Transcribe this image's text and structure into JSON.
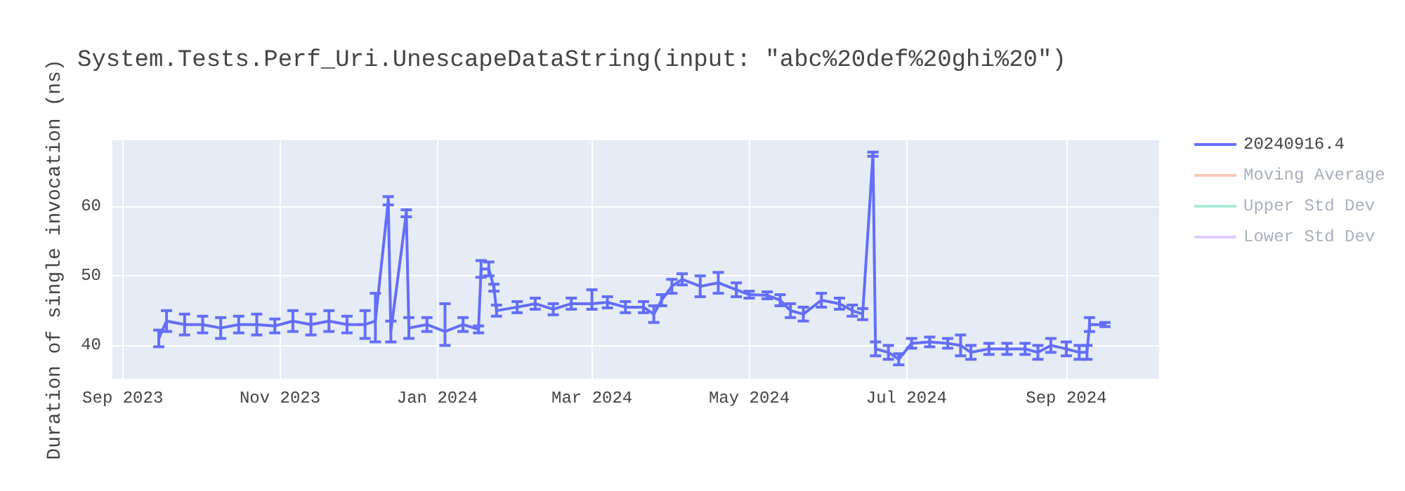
{
  "chart_data": {
    "type": "line",
    "title": "System.Tests.Perf_Uri.UnescapeDataString(input: \"abc%20def%20ghi%20\")",
    "ylabel": "Duration of single invocation (ns)",
    "x": [
      "2023-09-15",
      "2023-09-18",
      "2023-09-25",
      "2023-10-02",
      "2023-10-09",
      "2023-10-16",
      "2023-10-23",
      "2023-10-30",
      "2023-11-06",
      "2023-11-13",
      "2023-11-20",
      "2023-11-27",
      "2023-12-04",
      "2023-12-08",
      "2023-12-13",
      "2023-12-14",
      "2023-12-20",
      "2023-12-21",
      "2023-12-28",
      "2024-01-04",
      "2024-01-11",
      "2024-01-17",
      "2024-01-18",
      "2024-01-21",
      "2024-01-23",
      "2024-01-24",
      "2024-02-01",
      "2024-02-08",
      "2024-02-15",
      "2024-02-22",
      "2024-03-01",
      "2024-03-07",
      "2024-03-14",
      "2024-03-21",
      "2024-03-25",
      "2024-03-28",
      "2024-04-01",
      "2024-04-05",
      "2024-04-12",
      "2024-04-19",
      "2024-04-26",
      "2024-05-01",
      "2024-05-08",
      "2024-05-13",
      "2024-05-17",
      "2024-05-22",
      "2024-05-29",
      "2024-06-05",
      "2024-06-10",
      "2024-06-14",
      "2024-06-18",
      "2024-06-19",
      "2024-06-24",
      "2024-06-28",
      "2024-07-03",
      "2024-07-10",
      "2024-07-17",
      "2024-07-22",
      "2024-07-26",
      "2024-08-02",
      "2024-08-09",
      "2024-08-16",
      "2024-08-21",
      "2024-08-26",
      "2024-09-01",
      "2024-09-06",
      "2024-09-09",
      "2024-09-10",
      "2024-09-16"
    ],
    "series": [
      {
        "name": "20240916.4",
        "color": "#636efa",
        "values": [
          41,
          43.5,
          43,
          43,
          42.5,
          43,
          43,
          42.8,
          43.5,
          43,
          43.5,
          43,
          43,
          43.5,
          60.8,
          42,
          59,
          42.5,
          43,
          42,
          43,
          42.3,
          51,
          51,
          48.3,
          45,
          45.5,
          46,
          45.2,
          46,
          46,
          46.2,
          45.5,
          45.5,
          44.5,
          46.5,
          48.5,
          49.5,
          48.5,
          49,
          48,
          47.3,
          47.2,
          46.5,
          45,
          44.5,
          46.5,
          46,
          45,
          44.5,
          67.5,
          39.5,
          39,
          38,
          40.3,
          40.5,
          40.3,
          40,
          39,
          39.5,
          39.5,
          39.5,
          39,
          40,
          39.5,
          39,
          39,
          43,
          43
        ],
        "errors": [
          1.2,
          1.5,
          1.5,
          1.2,
          1.5,
          1.2,
          1.5,
          1,
          1.5,
          1.5,
          1.5,
          1.2,
          2,
          [
            40.5,
            47.5
          ],
          0.6,
          1.5,
          0.5,
          1.5,
          1,
          [
            40,
            46
          ],
          1,
          0.5,
          1.2,
          1,
          0.5,
          0.8,
          0.8,
          0.8,
          0.8,
          0.8,
          [
            45.2,
            48
          ],
          0.8,
          0.8,
          0.8,
          1.2,
          0.8,
          1,
          0.8,
          1.5,
          1.5,
          1,
          0.5,
          0.5,
          0.8,
          1,
          1,
          1,
          0.8,
          0.8,
          0.8,
          0.3,
          1,
          1,
          0.8,
          0.7,
          0.7,
          0.7,
          1.5,
          1,
          0.8,
          0.8,
          0.8,
          1,
          1,
          1,
          1,
          1,
          1,
          0.3
        ]
      },
      {
        "name": "Moving Average",
        "color": "#f4a58a",
        "values": [
          null,
          null,
          null,
          null,
          null,
          null,
          null,
          null,
          null,
          null,
          null,
          null,
          null,
          null,
          null,
          null,
          null,
          null,
          null,
          null,
          null,
          null,
          null,
          null,
          null,
          null,
          null,
          null,
          null,
          null,
          null,
          null,
          null,
          null,
          null,
          null,
          null,
          null,
          null,
          null,
          null,
          null,
          null,
          null,
          null,
          null,
          null,
          null,
          null,
          null,
          null,
          null,
          null,
          null,
          null,
          null,
          null,
          null,
          null,
          null,
          null,
          null,
          null,
          null,
          null,
          null,
          null,
          null,
          null
        ]
      },
      {
        "name": "Upper Std Dev",
        "color": "#6ee0b4",
        "values": [
          null,
          null,
          null,
          null,
          null,
          null,
          null,
          null,
          null,
          null,
          null,
          null,
          null,
          null,
          null,
          null,
          null,
          null,
          null,
          null,
          null,
          null,
          null,
          null,
          null,
          null,
          null,
          null,
          null,
          null,
          null,
          null,
          null,
          null,
          null,
          null,
          null,
          null,
          null,
          null,
          null,
          null,
          null,
          null,
          null,
          null,
          null,
          null,
          null,
          null,
          null,
          null,
          null,
          null,
          null,
          null,
          null,
          null,
          null,
          null,
          null,
          null,
          null,
          null,
          null,
          null,
          null,
          null,
          null
        ]
      },
      {
        "name": "Lower Std Dev",
        "color": "#c9a8f5",
        "values": [
          null,
          null,
          null,
          null,
          null,
          null,
          null,
          null,
          null,
          null,
          null,
          null,
          null,
          null,
          null,
          null,
          null,
          null,
          null,
          null,
          null,
          null,
          null,
          null,
          null,
          null,
          null,
          null,
          null,
          null,
          null,
          null,
          null,
          null,
          null,
          null,
          null,
          null,
          null,
          null,
          null,
          null,
          null,
          null,
          null,
          null,
          null,
          null,
          null,
          null,
          null,
          null,
          null,
          null,
          null,
          null,
          null,
          null,
          null,
          null,
          null,
          null,
          null,
          null,
          null,
          null,
          null,
          null,
          null
        ]
      }
    ],
    "xlim": [
      "2023-08-28",
      "2024-10-07"
    ],
    "xticks": [
      {
        "value": "2023-09-01",
        "label": "Sep 2023"
      },
      {
        "value": "2023-11-01",
        "label": "Nov 2023"
      },
      {
        "value": "2024-01-01",
        "label": "Jan 2024"
      },
      {
        "value": "2024-03-01",
        "label": "Mar 2024"
      },
      {
        "value": "2024-05-01",
        "label": "May 2024"
      },
      {
        "value": "2024-07-01",
        "label": "Jul 2024"
      },
      {
        "value": "2024-09-01",
        "label": "Sep 2024"
      }
    ],
    "ylim": [
      35.2,
      69.5
    ],
    "yticks": [
      40,
      50,
      60
    ],
    "grid": true,
    "legend": "top right",
    "marker": "none",
    "line_style": "solid"
  }
}
